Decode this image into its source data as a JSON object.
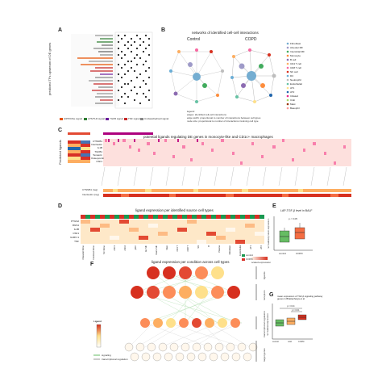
{
  "panels": {
    "A": {
      "label": "A",
      "ylabel": "predicted TFs upstream of DE genes",
      "legend": [
        "HIPPO/Ibe signal",
        "LPS/TLR signal",
        "TGFB signal",
        "TNF signal",
        "Unclassified/cell signal"
      ]
    },
    "B": {
      "label": "B",
      "title": "networks of identified cell-cell interactions",
      "groups": [
        "Control",
        "COPD"
      ],
      "legend_title": "legend:",
      "legend_lines": [
        "edges: identified cell-cell interactions",
        "edge width: proportional to number of interactions between cell types",
        "node size: proportional to number of interactions involving cell type"
      ],
      "cell_types": [
        "Fibroblast",
        "Alveolar MF",
        "Interstitial MF",
        "Monocyte",
        "B cell",
        "CD4 T cell",
        "CD8 T cell",
        "NK cell",
        "DC",
        "Neutrophil",
        "Endothelial",
        "AT1",
        "AT2",
        "Ciliated",
        "Club",
        "Mast",
        "Basophil"
      ]
    },
    "C": {
      "label": "C",
      "title": "potential ligands regulating DE genes in monocyte-like and CD1c+ macrophages",
      "ylabel": "Predicted ligands",
      "rows": [
        "CTNNB1",
        "Interleukin",
        "IL1B",
        "TGFB1",
        "Tenascin",
        "Osteopontin",
        "CSF1"
      ],
      "bottom_rows": [
        "CTNNB1 (reg)",
        "Interleukin (reg)"
      ],
      "colorbar": [
        "0",
        "0.1"
      ]
    },
    "D": {
      "label": "D",
      "title": "ligand expression per identified source cell types",
      "rows": [
        "PTGS2",
        "RGS1",
        "IL1B",
        "CSF1",
        "IL1RN 1",
        "TNF"
      ],
      "columns": [
        "Classical Mono",
        "Intermed Mono",
        "NC Mono",
        "cDC1",
        "cDC2",
        "pDC",
        "Alv MF",
        "Interst MF",
        "Mast",
        "CD4 T",
        "CD8 T",
        "NK",
        "B",
        "Plasma",
        "Fibroblast",
        "Endothelial",
        "AT1",
        "AT2"
      ],
      "legend": [
        "control",
        "COPD"
      ],
      "colorbar_label": "scaled expression"
    },
    "E": {
      "label": "E",
      "title": "LAP-TGF-β level in BALF",
      "ylabel": "normalized protein expression",
      "groups": [
        "control",
        "COPD"
      ],
      "pvalue": "p < 0.05"
    },
    "F": {
      "label": "F",
      "title": "ligand expression per condition across cell types",
      "legend_title": "Ligand",
      "legend_items": [
        "signaling",
        "transcriptional regulation"
      ],
      "layers": [
        "ligands",
        "receptors",
        "transcriptional regulators",
        "target genes"
      ]
    },
    "G": {
      "label": "G",
      "title": "mean expression of TGF-β signaling pathway genes in Bhattacharya et al",
      "ylabel": "normalized expression",
      "groups": [
        "control",
        "mild",
        "COPD"
      ],
      "pvalues": [
        "p = 0.04",
        "p = 0.01"
      ]
    }
  },
  "colors": {
    "red": "#d7301f",
    "orange": "#fc8d59",
    "yellow": "#fee08b",
    "green": "#91cf60",
    "darkgreen": "#1a9850",
    "blue": "#4575b4",
    "pink": "#fbb4b9"
  }
}
